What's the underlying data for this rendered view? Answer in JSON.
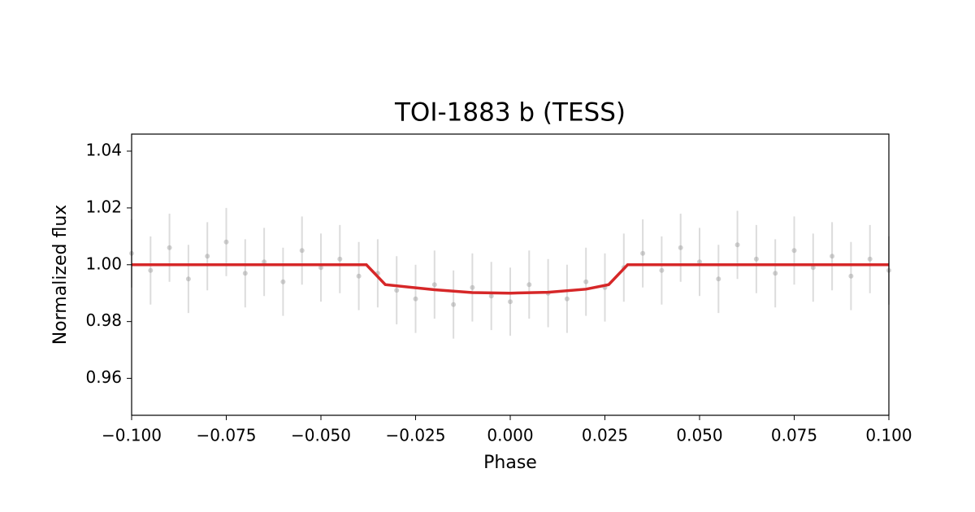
{
  "chart_data": {
    "type": "scatter",
    "title": "TOI-1883 b (TESS)",
    "x_label": "Phase",
    "y_label": "Normalized flux",
    "xlim": [
      -0.1,
      0.1
    ],
    "ylim": [
      0.947,
      1.046
    ],
    "xticks": [
      {
        "value": -0.1,
        "label": "−0.100"
      },
      {
        "value": -0.075,
        "label": "−0.075"
      },
      {
        "value": -0.05,
        "label": "−0.050"
      },
      {
        "value": -0.025,
        "label": "−0.025"
      },
      {
        "value": 0,
        "label": "0.000"
      },
      {
        "value": 0.025,
        "label": "0.025"
      },
      {
        "value": 0.05,
        "label": "0.050"
      },
      {
        "value": 0.075,
        "label": "0.075"
      },
      {
        "value": 0.1,
        "label": "0.100"
      }
    ],
    "yticks": [
      0.96,
      0.98,
      {
        "value": 1.0,
        "label": "1.00"
      },
      1.02,
      1.04
    ],
    "series": [
      {
        "type": "scatter",
        "color": "#9a9a9a",
        "error": 0.012,
        "x": [
          -0.1,
          -0.095,
          -0.09,
          -0.085,
          -0.08,
          -0.075,
          -0.07,
          -0.065,
          -0.06,
          -0.055,
          -0.05,
          -0.045,
          -0.04,
          -0.035,
          -0.03,
          -0.025,
          -0.02,
          -0.015,
          -0.01,
          -0.005,
          0,
          0.005,
          0.01,
          0.015,
          0.02,
          0.025,
          0.03,
          0.035,
          0.04,
          0.045,
          0.05,
          0.055,
          0.06,
          0.065,
          0.07,
          0.075,
          0.08,
          0.085,
          0.09,
          0.095,
          0.1
        ],
        "values": [
          1.004,
          0.998,
          1.006,
          0.995,
          1.003,
          1.008,
          0.997,
          1.001,
          0.994,
          1.005,
          0.999,
          1.002,
          0.996,
          0.997,
          0.991,
          0.988,
          0.993,
          0.986,
          0.992,
          0.989,
          0.987,
          0.993,
          0.99,
          0.988,
          0.994,
          0.992,
          0.999,
          1.004,
          0.998,
          1.006,
          1.001,
          0.995,
          1.007,
          1.002,
          0.997,
          1.005,
          0.999,
          1.003,
          0.996,
          1.002,
          0.998
        ]
      },
      {
        "type": "line",
        "color": "#d62728",
        "x": [
          -0.1,
          -0.038,
          -0.033,
          -0.02,
          -0.01,
          0,
          0.01,
          0.02,
          0.026,
          0.031,
          0.1
        ],
        "values": [
          1.0,
          1.0,
          0.993,
          0.9912,
          0.9902,
          0.99,
          0.9903,
          0.9914,
          0.993,
          1.0,
          1.0
        ]
      }
    ]
  }
}
